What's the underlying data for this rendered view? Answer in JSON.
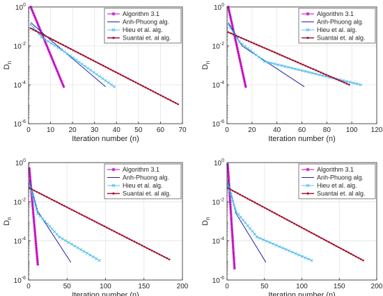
{
  "chart_data": [
    {
      "type": "line",
      "ylabel": "D_n",
      "xlabel": "Iteration number (n)",
      "yscale": "log",
      "xlim": [
        0,
        70
      ],
      "ylim_exp": [
        -6,
        0
      ],
      "xticks": [
        0,
        10,
        20,
        30,
        40,
        50,
        60,
        70
      ],
      "grid": true,
      "legend_position": "top-right",
      "series": [
        {
          "name": "Algorithm 3.1",
          "color": "#bf00bf",
          "marker": "star",
          "x": [
            1,
            16
          ],
          "log10_y": [
            0,
            -4.1
          ]
        },
        {
          "name": "Anh-Phuong alg.",
          "color": "#1f1fa0",
          "marker": "none",
          "x": [
            1,
            8,
            35
          ],
          "log10_y": [
            -0.8,
            -1.5,
            -4.1
          ]
        },
        {
          "name": "Hieu et al. alg.",
          "color": "#4dbeee",
          "marker": "x",
          "x": [
            1,
            6,
            15,
            39
          ],
          "log10_y": [
            -0.9,
            -1.55,
            -2.2,
            -4.1
          ]
        },
        {
          "name": "Suantai et. al alg.",
          "color": "#a2142f",
          "marker": "dot",
          "x": [
            1,
            68
          ],
          "log10_y": [
            -1.1,
            -5.0
          ]
        }
      ]
    },
    {
      "type": "line",
      "ylabel": "D_n",
      "xlabel": "Iteration number (n)",
      "yscale": "log",
      "xlim": [
        0,
        120
      ],
      "ylim_exp": [
        -6,
        0
      ],
      "xticks": [
        0,
        20,
        40,
        60,
        80,
        100,
        120
      ],
      "grid": true,
      "legend_position": "top-right",
      "series": [
        {
          "name": "Algorithm 3.1",
          "color": "#bf00bf",
          "marker": "star",
          "x": [
            1,
            15
          ],
          "log10_y": [
            0,
            -4.1
          ]
        },
        {
          "name": "Anh-Phuong alg.",
          "color": "#1f1fa0",
          "marker": "none",
          "x": [
            1,
            12,
            62
          ],
          "log10_y": [
            -0.8,
            -2.0,
            -4.1
          ]
        },
        {
          "name": "Hieu et al. alg.",
          "color": "#4dbeee",
          "marker": "x",
          "x": [
            1,
            10,
            30,
            107
          ],
          "log10_y": [
            -0.9,
            -1.8,
            -2.8,
            -4.0
          ]
        },
        {
          "name": "Suantai et. al alg.",
          "color": "#a2142f",
          "marker": "dot",
          "x": [
            1,
            98
          ],
          "log10_y": [
            -1.3,
            -4.0
          ]
        }
      ]
    },
    {
      "type": "line",
      "ylabel": "D_n",
      "xlabel": "Iteration number (n)",
      "yscale": "log",
      "xlim": [
        0,
        200
      ],
      "ylim_exp": [
        -6,
        0
      ],
      "xticks": [
        0,
        50,
        100,
        150,
        200
      ],
      "grid": true,
      "legend_position": "top-right",
      "series": [
        {
          "name": "Algorithm 3.1",
          "color": "#bf00bf",
          "marker": "star",
          "x": [
            1,
            12
          ],
          "log10_y": [
            -0.3,
            -5.2
          ]
        },
        {
          "name": "Anh-Phuong alg.",
          "color": "#1f1fa0",
          "marker": "none",
          "x": [
            1,
            12,
            55
          ],
          "log10_y": [
            -0.9,
            -2.5,
            -5.1
          ]
        },
        {
          "name": "Hieu et al. alg.",
          "color": "#4dbeee",
          "marker": "x",
          "x": [
            1,
            12,
            40,
            92
          ],
          "log10_y": [
            -1.1,
            -2.6,
            -3.8,
            -5.0
          ]
        },
        {
          "name": "Suantai et. al alg.",
          "color": "#a2142f",
          "marker": "dot",
          "x": [
            1,
            183
          ],
          "log10_y": [
            -1.3,
            -4.95
          ]
        }
      ]
    },
    {
      "type": "line",
      "ylabel": "D_n",
      "xlabel": "Iteration number (n)",
      "yscale": "log",
      "xlim": [
        0,
        200
      ],
      "ylim_exp": [
        -6,
        0
      ],
      "xticks": [
        0,
        50,
        100,
        150,
        200
      ],
      "grid": true,
      "legend_position": "top-right",
      "series": [
        {
          "name": "Algorithm 3.1",
          "color": "#bf00bf",
          "marker": "star",
          "x": [
            1,
            10
          ],
          "log10_y": [
            -0.1,
            -5.4
          ]
        },
        {
          "name": "Anh-Phuong alg.",
          "color": "#1f1fa0",
          "marker": "none",
          "x": [
            1,
            12,
            52
          ],
          "log10_y": [
            -0.9,
            -2.6,
            -5.1
          ]
        },
        {
          "name": "Hieu et al. alg.",
          "color": "#4dbeee",
          "marker": "x",
          "x": [
            1,
            12,
            40,
            113
          ],
          "log10_y": [
            -1.1,
            -2.5,
            -3.8,
            -5.0
          ]
        },
        {
          "name": "Suantai et. al alg.",
          "color": "#a2142f",
          "marker": "dot",
          "x": [
            1,
            182
          ],
          "log10_y": [
            -1.3,
            -5.0
          ]
        }
      ]
    }
  ]
}
